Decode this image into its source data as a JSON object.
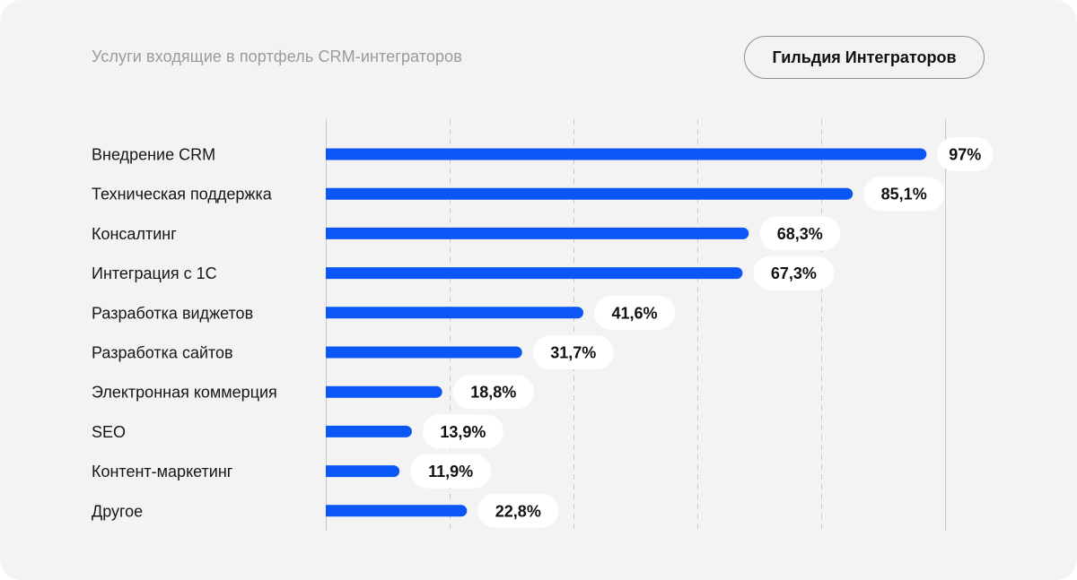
{
  "header": {
    "subtitle": "Услуги входящие в портфель CRM-интеграторов",
    "brand": "Гильдия Интеграторов"
  },
  "colors": {
    "bar": "#0b57f5",
    "grid": "#c9c9cc",
    "background": "#f3f3f4",
    "label_bubble": "#ffffff"
  },
  "chart_data": {
    "type": "bar",
    "orientation": "horizontal",
    "title": "Услуги входящие в портфель CRM-интеграторов",
    "xlabel": "",
    "ylabel": "",
    "xlim": [
      0,
      100
    ],
    "grid": true,
    "categories": [
      "Внедрение CRM",
      "Техническая поддержка",
      "Консалтинг",
      "Интеграция с 1С",
      "Разработка виджетов",
      "Разработка сайтов",
      "Электронная коммерция",
      "SEO",
      "Контент-маркетинг",
      "Другое"
    ],
    "values": [
      97,
      85.1,
      68.3,
      67.3,
      41.6,
      31.7,
      18.8,
      13.9,
      11.9,
      22.8
    ],
    "value_labels": [
      "97%",
      "85,1%",
      "68,3%",
      "67,3%",
      "41,6%",
      "31,7%",
      "18,8%",
      "13,9%",
      "11,9%",
      "22,8%"
    ]
  }
}
